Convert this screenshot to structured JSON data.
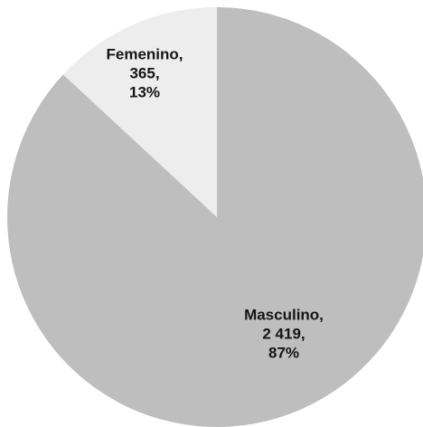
{
  "chart_data": {
    "type": "pie",
    "categories": [
      "Femenino,",
      "Masculino,"
    ],
    "values": [
      365,
      2419
    ],
    "value_labels": [
      "365,",
      "2 419,"
    ],
    "percents": [
      13,
      87
    ],
    "percent_labels": [
      "13%",
      "87%"
    ],
    "colors": [
      "#ededed",
      "#bebebe"
    ]
  }
}
